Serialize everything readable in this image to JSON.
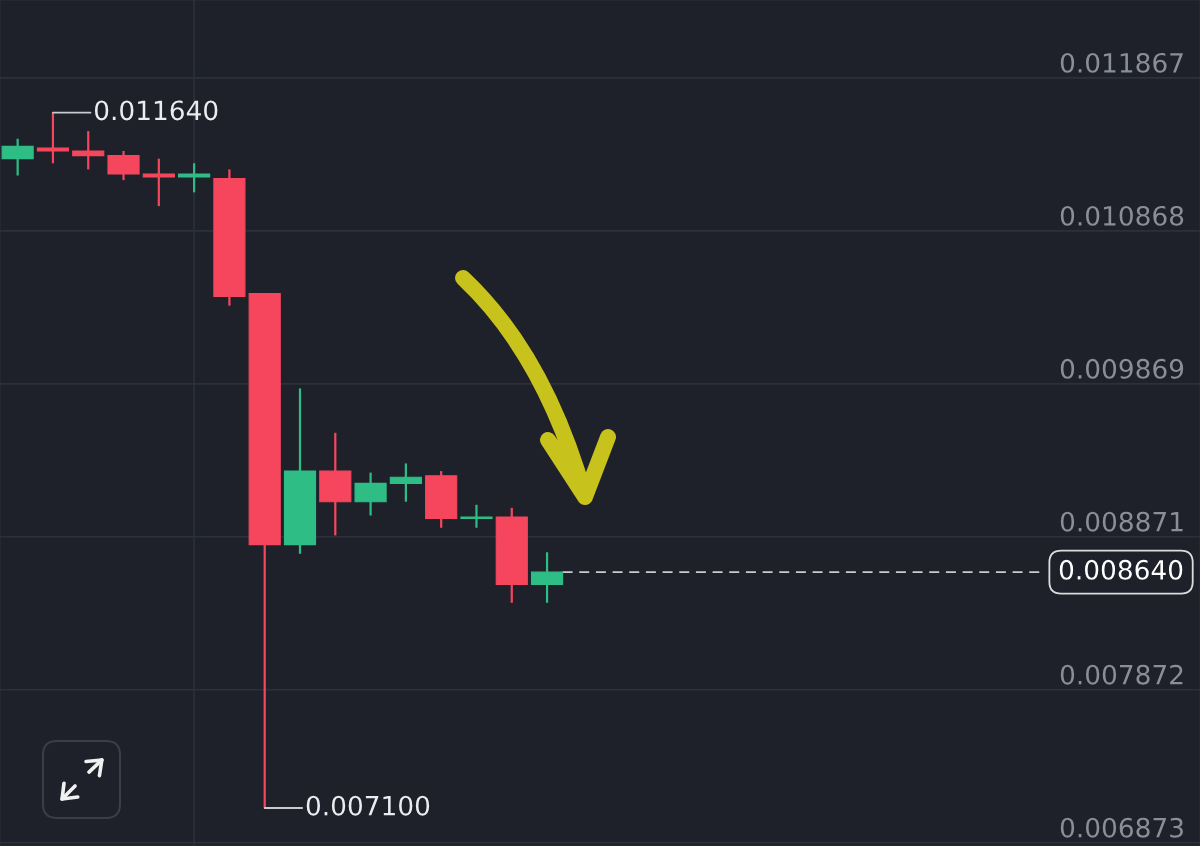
{
  "chart_data": {
    "type": "candlestick",
    "categories": [
      null,
      null,
      null,
      null,
      null,
      null,
      null,
      null,
      null,
      null,
      null,
      null,
      null,
      null,
      null,
      null,
      null,
      null,
      null,
      null,
      null,
      null,
      null,
      null,
      null,
      null,
      null,
      null,
      null,
      null,
      null,
      null,
      null,
      null
    ],
    "ohlc": [
      [
        0.01134,
        0.01147,
        0.01123,
        0.01142
      ],
      [
        0.01141,
        0.01164,
        0.01131,
        0.01139
      ],
      [
        0.01139,
        0.01152,
        0.01127,
        0.01136
      ],
      [
        0.01136,
        0.01139,
        0.0112,
        0.01124
      ],
      [
        0.01124,
        0.01134,
        0.01103,
        0.01122
      ],
      [
        0.01122,
        0.01131,
        0.01112,
        0.01124
      ],
      [
        0.01121,
        0.01127,
        0.01038,
        0.01044
      ],
      [
        0.01046,
        0.01046,
        0.0071,
        0.00882
      ],
      [
        0.00882,
        0.00984,
        0.00876,
        0.0093
      ],
      [
        0.0093,
        0.00955,
        0.00888,
        0.0091
      ],
      [
        0.0091,
        0.00929,
        0.00901,
        0.00922
      ],
      [
        0.00922,
        0.00935,
        0.0091,
        0.00926
      ],
      [
        0.00927,
        0.0093,
        0.00893,
        0.00899
      ],
      [
        0.00899,
        0.00908,
        0.00893,
        0.009
      ],
      [
        0.009,
        0.00906,
        0.00844,
        0.00856
      ],
      [
        0.00856,
        0.00877,
        0.00844,
        0.00864
      ],
      null,
      null,
      null,
      null,
      null,
      null,
      null,
      null,
      null,
      null,
      null,
      null,
      null,
      null,
      null,
      null,
      null,
      null
    ],
    "colors": [
      "#2ebd85",
      "#f6465d",
      "#f6465d",
      "#f6465d",
      "#f6465d",
      "#2ebd85",
      "#f6465d",
      "#f6465d",
      "#2ebd85",
      "#f6465d",
      "#2ebd85",
      "#2ebd85",
      "#f6465d",
      "#2ebd85",
      "#f6465d",
      "#2ebd85",
      null,
      null,
      null,
      null,
      null,
      null,
      null,
      null,
      null,
      null,
      null,
      null,
      null,
      null,
      null,
      null,
      null,
      null
    ],
    "ylim": [
      0.006852,
      0.012376
    ],
    "yticks": [
      0.011867,
      0.010868,
      0.009869,
      0.008871,
      0.007872,
      0.006873
    ],
    "grid": "y",
    "tick_labels": "y",
    "ref_lines": [
      {
        "axis": "y",
        "value": 0.00864,
        "label": "0.008640",
        "line_style": "dashed",
        "color": "#c9cbcf"
      }
    ],
    "annotations": [
      "0.011640",
      "0.007100"
    ]
  }
}
